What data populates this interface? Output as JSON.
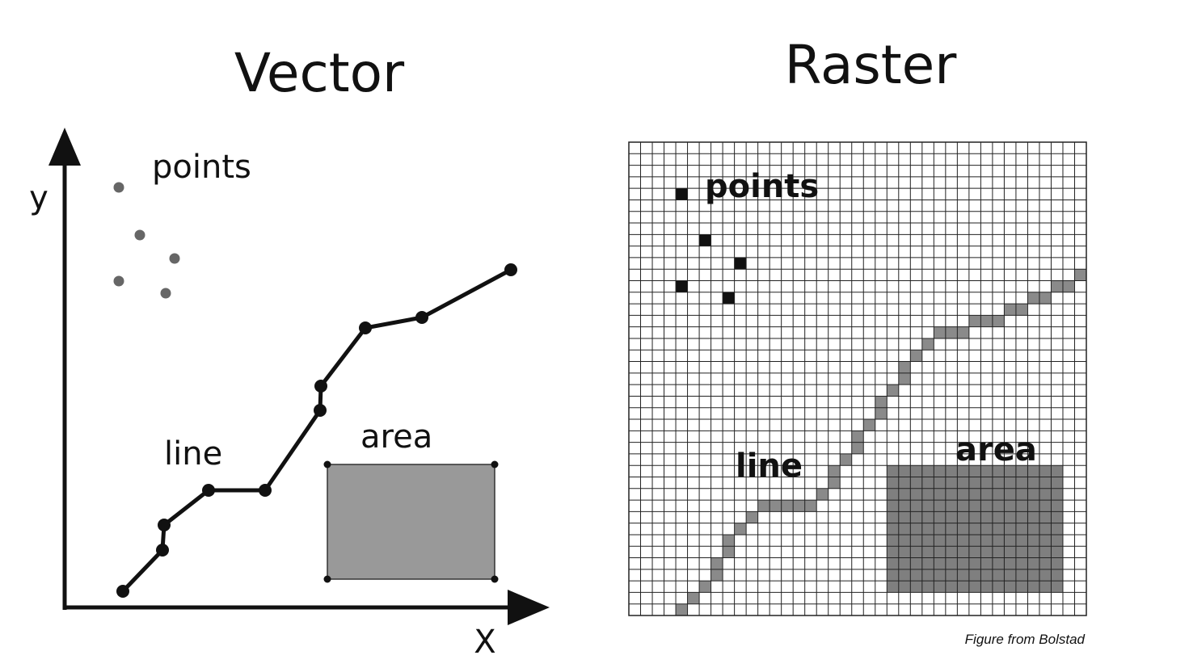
{
  "vector": {
    "title": "Vector",
    "x_axis_label": "X",
    "y_axis_label": "y",
    "points_label": "points",
    "line_label": "line",
    "area_label": "area"
  },
  "raster": {
    "title": "Raster",
    "points_label": "points",
    "line_label": "line",
    "area_label": "area"
  },
  "caption": "Figure from Bolstad",
  "colors": {
    "ink": "#111111",
    "point_gray": "#666666",
    "fill_gray": "#999999",
    "raster_line_gray": "#8a8a8a",
    "raster_area_gray": "#7f7f7f"
  }
}
